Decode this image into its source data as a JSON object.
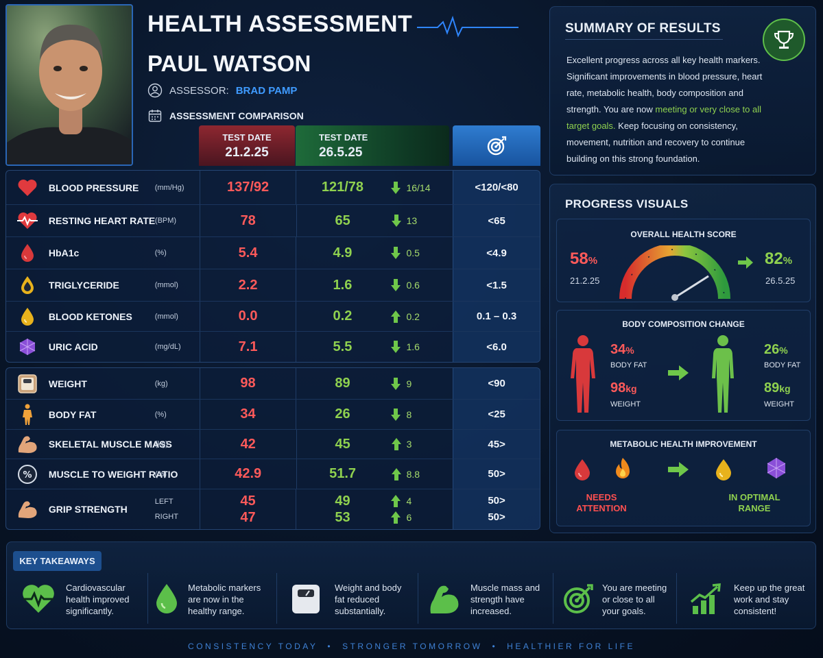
{
  "header": {
    "title": "HEALTH ASSESSMENT",
    "name": "PAUL WATSON",
    "assessor_label": "ASSESSOR:",
    "assessor_name": "BRAD PAMP",
    "comparison_label": "ASSESSMENT COMPARISON"
  },
  "columns": {
    "date1_label": "TEST DATE",
    "date1": "21.2.25",
    "date2_label": "TEST DATE",
    "date2": "26.5.25"
  },
  "table1": [
    {
      "name": "BLOOD PRESSURE",
      "unit": "(mm/Hg)",
      "old": "137/92",
      "new": "121/78",
      "dir": "down",
      "delta": "16/14",
      "target": "<120/<80",
      "icon": "heart-icon"
    },
    {
      "name": "RESTING HEART RATE",
      "unit": "(BPM)",
      "old": "78",
      "new": "65",
      "dir": "down",
      "delta": "13",
      "target": "<65",
      "icon": "heartbeat-icon"
    },
    {
      "name": "HbA1c",
      "unit": "(%)",
      "old": "5.4",
      "new": "4.9",
      "dir": "down",
      "delta": "0.5",
      "target": "<4.9",
      "icon": "blood-drop-icon"
    },
    {
      "name": "TRIGLYCERIDE",
      "unit": "(mmol)",
      "old": "2.2",
      "new": "1.6",
      "dir": "down",
      "delta": "0.6",
      "target": "<1.5",
      "icon": "oil-drop-icon"
    },
    {
      "name": "BLOOD KETONES",
      "unit": "(mmol)",
      "old": "0.0",
      "new": "0.2",
      "dir": "up",
      "delta": "0.2",
      "target": "0.1 – 0.3",
      "icon": "ketone-drop-icon"
    },
    {
      "name": "URIC ACID",
      "unit": "(mg/dL)",
      "old": "7.1",
      "new": "5.5",
      "dir": "down",
      "delta": "1.6",
      "target": "<6.0",
      "icon": "crystal-icon"
    }
  ],
  "table2": [
    {
      "name": "WEIGHT",
      "unit": "(kg)",
      "old": "98",
      "new": "89",
      "dir": "down",
      "delta": "9",
      "target": "<90",
      "icon": "scale-icon"
    },
    {
      "name": "BODY FAT",
      "unit": "(%)",
      "old": "34",
      "new": "26",
      "dir": "down",
      "delta": "8",
      "target": "<25",
      "icon": "body-icon"
    },
    {
      "name": "SKELETAL MUSCLE MASS",
      "unit": "(kg)",
      "old": "42",
      "new": "45",
      "dir": "up",
      "delta": "3",
      "target": "45>",
      "icon": "muscle-icon"
    },
    {
      "name": "MUSCLE TO WEIGHT RATIO",
      "unit": "(%)",
      "old": "42.9",
      "new": "51.7",
      "dir": "up",
      "delta": "8.8",
      "target": "50>",
      "icon": "percent-icon"
    }
  ],
  "grip": {
    "name": "GRIP STRENGTH",
    "left_label": "LEFT",
    "left_old": "45",
    "left_new": "49",
    "left_delta": "4",
    "left_target": "50>",
    "right_label": "RIGHT",
    "right_old": "47",
    "right_new": "53",
    "right_delta": "6",
    "right_target": "50>"
  },
  "summary": {
    "title": "SUMMARY OF RESULTS",
    "text_1": "Excellent progress across all key health markers. Significant improvements in blood pressure, heart rate, metabolic health, body composition and strength. You are now ",
    "text_hl": "meeting or very close to all target goals.",
    "text_2": " Keep focusing on consistency, movement, nutrition and recovery to continue building on this strong foundation."
  },
  "progress": {
    "title": "PROGRESS VISUALS",
    "score_title": "OVERALL HEALTH SCORE",
    "score_old": "58",
    "score_new": "82",
    "percent_sign": "%",
    "date_old": "21.2.25",
    "date_new": "26.5.25",
    "body_title": "BODY COMPOSITION CHANGE",
    "fat_old": "34",
    "fat_new": "26",
    "body_fat_label": "BODY FAT",
    "weight_old": "98",
    "weight_new": "89",
    "kg": "kg",
    "weight_label": "WEIGHT",
    "metabolic_title": "METABOLIC HEALTH IMPROVEMENT",
    "needs_attention": "NEEDS ATTENTION",
    "optimal": "IN OPTIMAL RANGE"
  },
  "takeaways": {
    "badge": "KEY TAKEAWAYS",
    "items": [
      "Cardiovascular health improved significantly.",
      "Metabolic markers are now in the healthy range.",
      "Weight and body fat reduced substantially.",
      "Muscle mass and strength have increased.",
      "You are meeting or close to all your goals.",
      "Keep up the great work and stay consistent!"
    ]
  },
  "footer": {
    "part1": "CONSISTENCY TODAY",
    "part2": "STRONGER TOMORROW",
    "part3": "HEALTHIER FOR LIFE",
    "separator": "•"
  },
  "colors": {
    "accent": "#3f9bff",
    "bad": "#ff5a5a",
    "good": "#8fd14f"
  }
}
